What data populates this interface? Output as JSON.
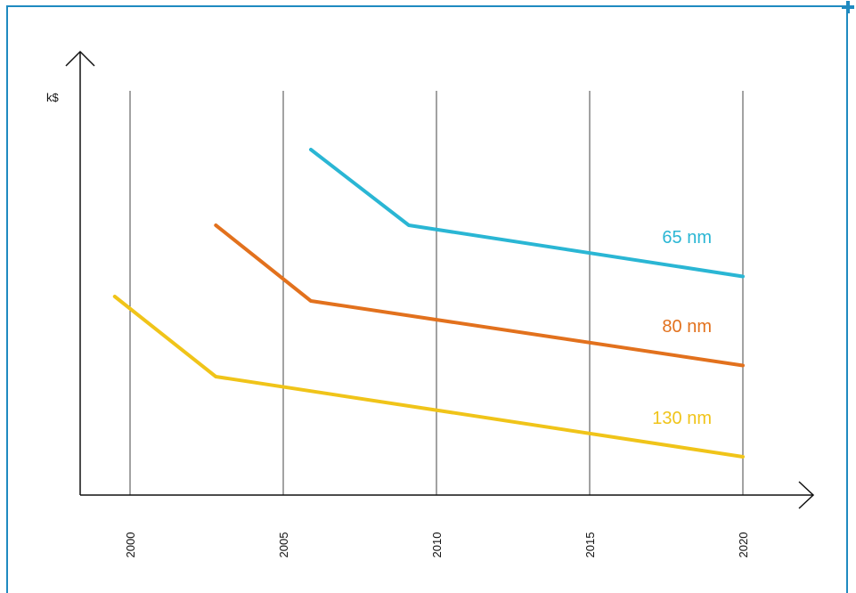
{
  "chart_data": {
    "type": "line",
    "ylabel": "k$",
    "xlim": [
      1998.4,
      2022
    ],
    "x_ticks": [
      2000,
      2005,
      2010,
      2015,
      2020
    ],
    "x_tick_labels": [
      "2000",
      "2005",
      "2010",
      "2015",
      "2020"
    ],
    "grid": "vertical",
    "colors": {
      "frame": "#1f8ac0",
      "axis": "#111111",
      "grid": "#444444"
    },
    "series": [
      {
        "name": "65 nm",
        "color": "#2ab6d4",
        "x": [
          2005.9,
          2009.1,
          2020
        ],
        "y": [
          7.8,
          6.1,
          4.95
        ]
      },
      {
        "name": "80 nm",
        "color": "#e2711d",
        "x": [
          2002.8,
          2005.9,
          2020
        ],
        "y": [
          6.1,
          4.4,
          2.95
        ]
      },
      {
        "name": "130 nm",
        "color": "#f0c419",
        "x": [
          1999.5,
          2002.8,
          2020
        ],
        "y": [
          4.5,
          2.7,
          0.9
        ]
      }
    ]
  }
}
